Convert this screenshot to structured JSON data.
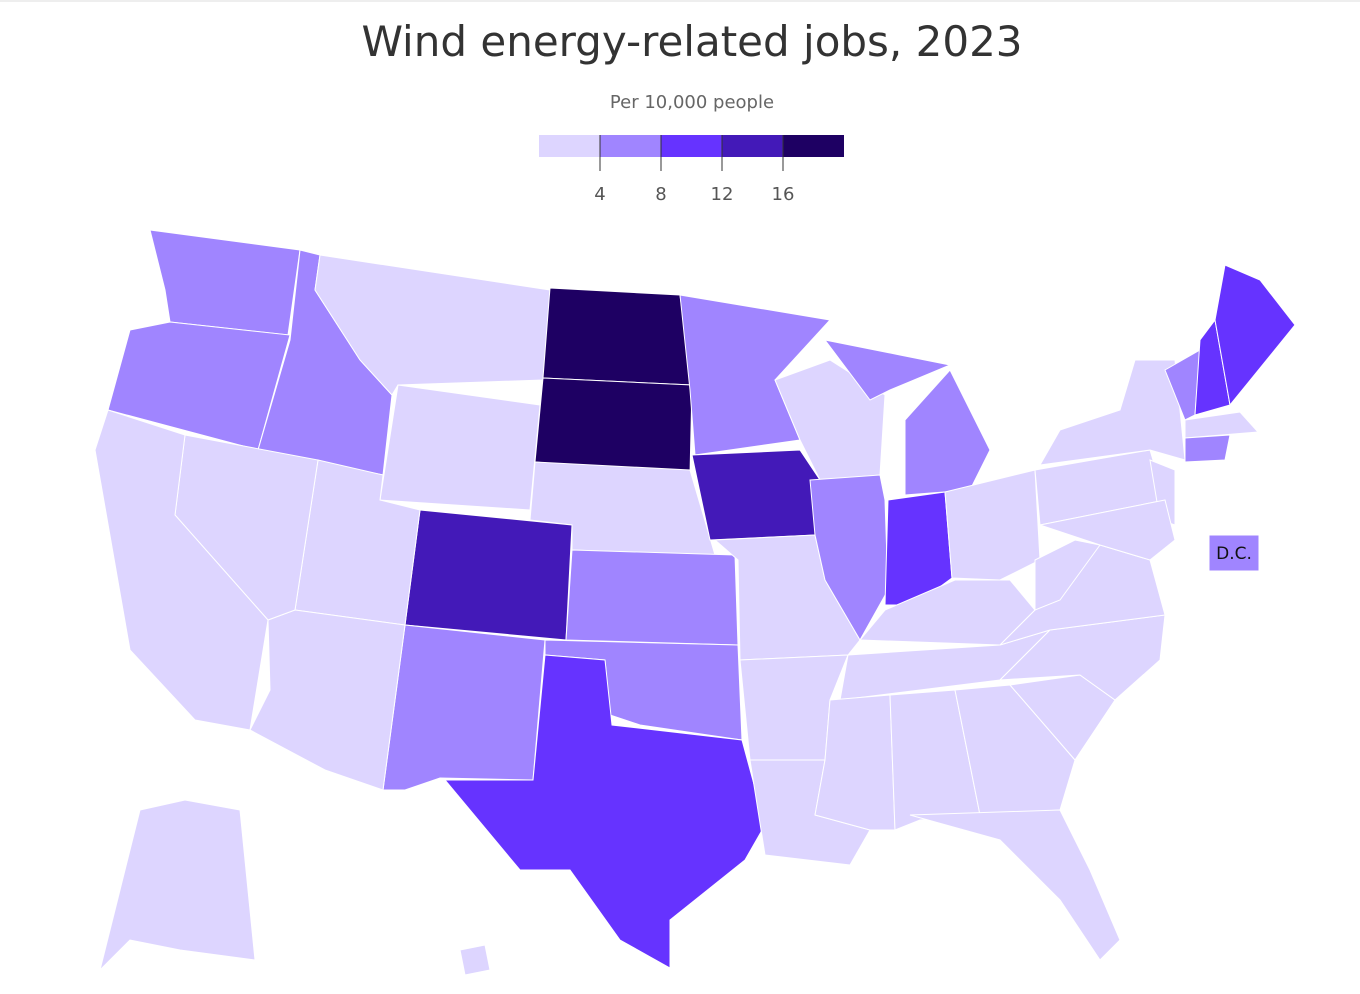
{
  "map": {
    "title": "Wind energy-related jobs, 2023",
    "subtitle": "Per 10,000 people",
    "legend": {
      "colors": [
        "#ddd5ff",
        "#a085ff",
        "#6633ff",
        "#4319b8",
        "#1e0063"
      ],
      "breaks": [
        4,
        8,
        12,
        16
      ]
    },
    "region_classes": [
      1,
      1,
      1,
      0,
      0,
      4,
      4,
      0,
      3,
      1,
      1,
      1,
      2,
      0,
      0,
      0,
      0,
      1,
      3,
      0,
      0,
      0,
      0,
      1,
      2,
      1,
      1,
      0,
      0,
      0,
      0,
      0,
      0,
      0,
      0,
      0,
      0,
      0,
      0,
      0,
      1,
      2,
      2,
      0,
      1,
      0,
      0,
      0,
      0
    ],
    "dc": {
      "label": "D.C.",
      "class": 1
    }
  }
}
